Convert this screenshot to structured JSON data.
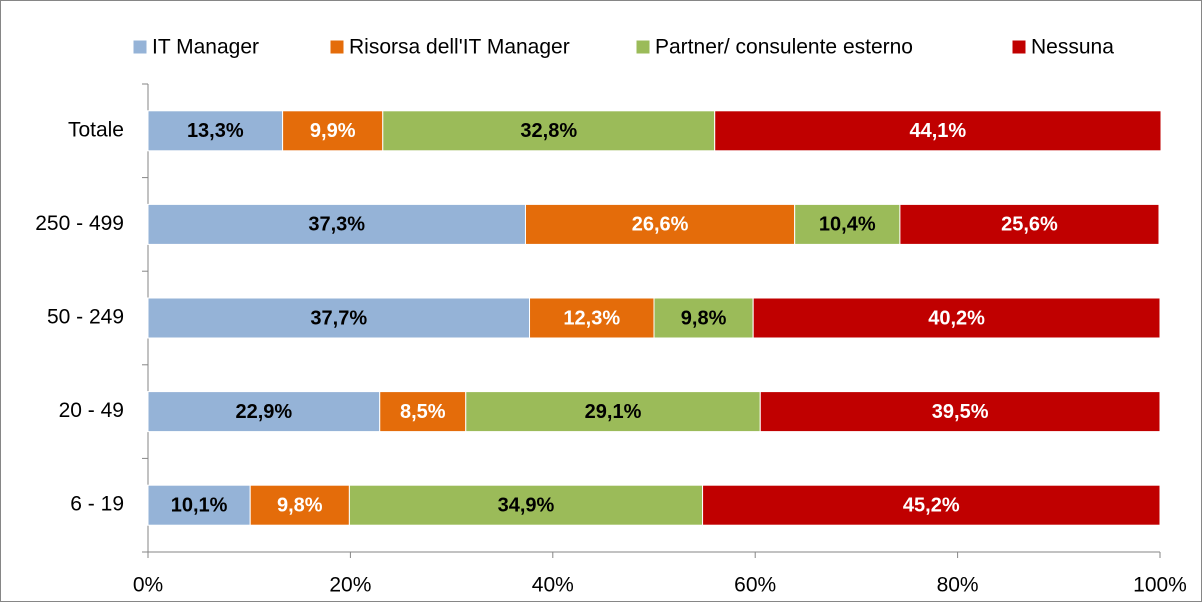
{
  "chart_data": {
    "type": "stacked_barh",
    "categories": [
      "Totale",
      "250 - 499",
      "50 - 249",
      "20 - 49",
      "6 - 19"
    ],
    "series": [
      {
        "name": "IT Manager",
        "color": "#95b3d7",
        "label_color": "#000000",
        "values": [
          13.3,
          37.3,
          37.7,
          22.9,
          10.1
        ],
        "value_labels": [
          "13,3%",
          "37,3%",
          "37,7%",
          "22,9%",
          "10,1%"
        ]
      },
      {
        "name": "Risorsa dell'IT Manager",
        "color": "#e46c0a",
        "label_color": "#ffffff",
        "values": [
          9.9,
          26.6,
          12.3,
          8.5,
          9.8
        ],
        "value_labels": [
          "9,9%",
          "26,6%",
          "12,3%",
          "8,5%",
          "9,8%"
        ]
      },
      {
        "name": "Partner/ consulente esterno",
        "color": "#9bbb59",
        "label_color": "#000000",
        "values": [
          32.8,
          10.4,
          9.8,
          29.1,
          34.9
        ],
        "value_labels": [
          "32,8%",
          "10,4%",
          "9,8%",
          "29,1%",
          "34,9%"
        ]
      },
      {
        "name": "Nessuna",
        "color": "#c00000",
        "label_color": "#ffffff",
        "values": [
          44.1,
          25.6,
          40.2,
          39.5,
          45.2
        ],
        "value_labels": [
          "44,1%",
          "25,6%",
          "40,2%",
          "39,5%",
          "45,2%"
        ]
      }
    ],
    "xlim": [
      0,
      100
    ],
    "xticks": [
      {
        "value": 0,
        "label": "0%"
      },
      {
        "value": 20,
        "label": "20%"
      },
      {
        "value": 40,
        "label": "40%"
      },
      {
        "value": 60,
        "label": "60%"
      },
      {
        "value": 80,
        "label": "80%"
      },
      {
        "value": 100,
        "label": "100%"
      }
    ],
    "grid": false,
    "legend": "top"
  }
}
